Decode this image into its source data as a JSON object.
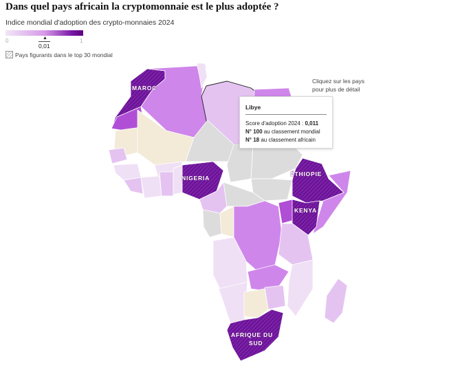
{
  "title": "Dans quel pays africain la cryptomonnaie est le plus adoptée ?",
  "subtitle": "Indice mondial d'adoption des crypto-monnaies 2024",
  "legend": {
    "min_label": "0",
    "max_label": "1",
    "marker_value": "0,01",
    "marker_position": 0.5,
    "hatch_label": "Pays figurants dans le top 30 mondial"
  },
  "hint": {
    "line1": "Cliquez sur les pays",
    "line2": "pour plus de détail"
  },
  "tooltip": {
    "country": "Libye",
    "score_label": "Score d'adoption 2024 : ",
    "score_value": "0,011",
    "world_rank": "N° 100",
    "world_rank_suffix": " au classement mondial",
    "africa_rank": "N° 18",
    "africa_rank_suffix": " au classement africain"
  },
  "map_labels": {
    "maroc": "MAROC",
    "nigeria": "NIGERIA",
    "ethiopie": "ÉTHIOPIE",
    "kenya": "KENYA",
    "afrique_sud_1": "AFRIQUE DU",
    "afrique_sud_2": "SUD"
  },
  "colors": {
    "top30": "#7b1fa8",
    "high": "#b04fd6",
    "mid": "#cf86ea",
    "low": "#e4c3f1",
    "very_low": "#efe0f5",
    "no_data": "#dcdcdc",
    "sahara": "#f3ead8"
  }
}
